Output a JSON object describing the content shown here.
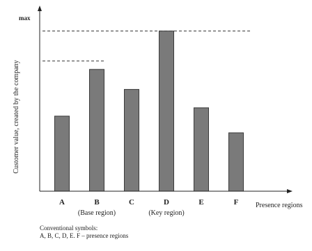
{
  "chart_data": {
    "type": "bar",
    "categories": [
      "A",
      "B",
      "C",
      "D",
      "E",
      "F"
    ],
    "category_sublabels": [
      "",
      "(Base region)",
      "",
      "(Key region)",
      "",
      ""
    ],
    "values": [
      45,
      73,
      61,
      96,
      50,
      35
    ],
    "ylabel": "Customer value, created by the company",
    "xlabel": "Presence regions",
    "max_label": "max",
    "ylim": [
      0,
      100
    ],
    "reference_lines": [
      {
        "label": "max",
        "value": 96,
        "extent": "full"
      },
      {
        "label": "",
        "value": 78,
        "extent": "short"
      }
    ],
    "bar_color": "#7a7a7a",
    "grid": false,
    "legend": "none"
  },
  "notes": {
    "title": "Conventional symbols:",
    "line1": "A, B, C, D, E. F – presence regions"
  }
}
